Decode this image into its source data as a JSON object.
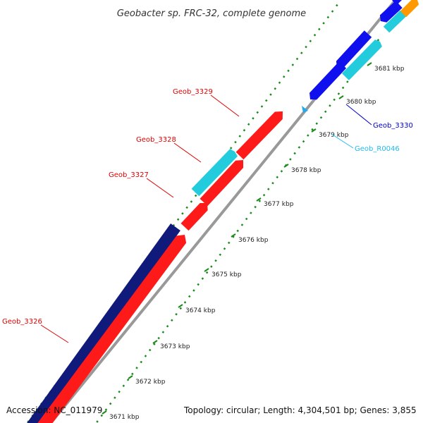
{
  "title": "Geobacter sp. FRC-32, complete genome",
  "footer": {
    "accession": "Accession: NC_011979",
    "topology": "Topology: circular; Length: 4,304,501 bp; Genes: 3,855"
  },
  "ticks": [
    "3671 kbp",
    "3672 kbp",
    "3673 kbp",
    "3674 kbp",
    "3675 kbp",
    "3676 kbp",
    "3677 kbp",
    "3678 kbp",
    "3679 kbp",
    "3680 kbp",
    "3681 kbp"
  ],
  "gene_labels": [
    {
      "name": "Geob_3326",
      "color": "#e00000"
    },
    {
      "name": "Geob_3327",
      "color": "#e00000"
    },
    {
      "name": "Geob_3328",
      "color": "#e00000"
    },
    {
      "name": "Geob_3329",
      "color": "#e00000"
    },
    {
      "name": "Geob_3330",
      "color": "#0000cc"
    },
    {
      "name": "Geob_R0046",
      "color": "#22bbee"
    }
  ],
  "colors": {
    "forward_cds": "#ff1a1a",
    "reverse_cds_dark": "#101a7a",
    "reverse_cds": "#1010ee",
    "rna": "#22ccdd",
    "rna_light": "#22aaee",
    "orange_feature": "#ff9900",
    "backbone": "#999999",
    "ruler_dots": "#1a8a1a"
  }
}
